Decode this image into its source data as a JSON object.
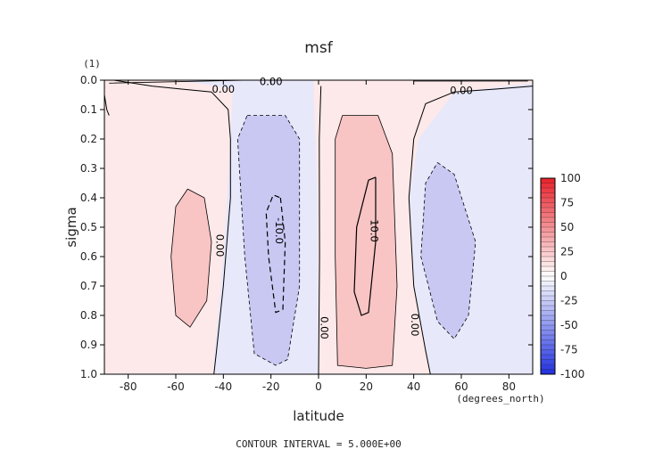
{
  "chart_data": {
    "type": "contour",
    "title": "msf",
    "xlabel": "latitude",
    "ylabel": "sigma",
    "x_units": "(degrees_north)",
    "y_units": "(1)",
    "xlim": [
      -90,
      90
    ],
    "ylim": [
      1.0,
      0.0
    ],
    "x_ticks": [
      -80,
      -60,
      -40,
      -20,
      0,
      20,
      40,
      60,
      80
    ],
    "x_tick_labels": [
      "-80",
      "-60",
      "-40",
      "-20",
      "0",
      "20",
      "40",
      "60",
      "80"
    ],
    "y_ticks": [
      0.0,
      0.1,
      0.2,
      0.3,
      0.4,
      0.5,
      0.6,
      0.7,
      0.8,
      0.9,
      1.0
    ],
    "y_tick_labels": [
      "0.0",
      "0.1",
      "0.2",
      "0.3",
      "0.4",
      "0.5",
      "0.6",
      "0.7",
      "0.8",
      "0.9",
      "1.0"
    ],
    "contour_interval": 5.0,
    "footer": "CONTOUR INTERVAL = 5.000E+00",
    "contour_labels": [
      "0.00",
      "0.00",
      "0.00",
      "-10.0",
      "10.0",
      "0.00",
      "0.00",
      "0.00"
    ],
    "colorbar": {
      "levels": [
        100,
        75,
        50,
        25,
        0,
        -25,
        -50,
        -75,
        -100
      ],
      "labels": [
        "100",
        "75",
        "50",
        "25",
        "0",
        "-25",
        "-50",
        "-75",
        "-100"
      ],
      "positive_color": "#e8202a",
      "negative_color": "#2030e0",
      "zero_color": "#ffffff"
    },
    "cells": [
      {
        "name": "sh-extratropical-positive",
        "sign": "positive",
        "x_range": [
          -90,
          -38
        ],
        "y_range": [
          0.05,
          1.0
        ],
        "peak": 5
      },
      {
        "name": "sh-ferrel-negative-outer",
        "sign": "negative",
        "x_range": [
          -38,
          0
        ],
        "y_range": [
          0.03,
          1.0
        ],
        "peak": -5
      },
      {
        "name": "sh-hadley-negative-core",
        "sign": "negative",
        "x_range": [
          -32,
          -8
        ],
        "y_range": [
          0.12,
          0.97
        ],
        "peak": -12
      },
      {
        "name": "nh-hadley-positive-core",
        "sign": "positive",
        "x_range": [
          5,
          32
        ],
        "y_range": [
          0.12,
          0.98
        ],
        "peak": 12
      },
      {
        "name": "nh-ferrel-negative",
        "sign": "negative",
        "x_range": [
          35,
          90
        ],
        "y_range": [
          0.03,
          1.0
        ],
        "peak": -5
      },
      {
        "name": "nh-extratropical-positive-inner",
        "sign": "positive",
        "x_range": [
          -62,
          -44
        ],
        "y_range": [
          0.37,
          0.84
        ],
        "peak": 6
      },
      {
        "name": "nh-negative-inner",
        "sign": "negative",
        "x_range": [
          42,
          66
        ],
        "y_range": [
          0.28,
          0.88
        ],
        "peak": -6
      }
    ]
  }
}
